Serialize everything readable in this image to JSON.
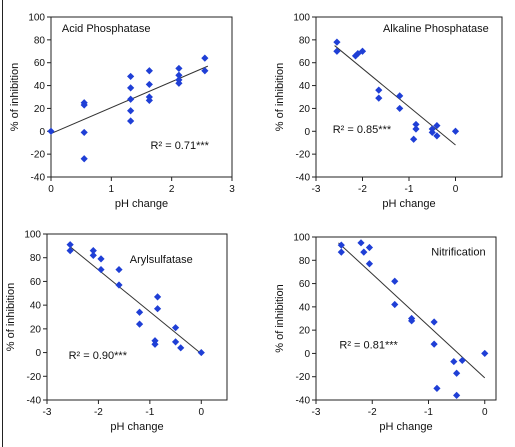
{
  "chart_data": [
    {
      "type": "scatter",
      "title": "Acid Phosphatase",
      "annotation": "R² = 0.71***",
      "xlabel": "pH change",
      "ylabel": "% of inhibition",
      "xlim": [
        0,
        3
      ],
      "ylim": [
        -40,
        100
      ],
      "xticks": [
        0,
        1,
        2,
        3
      ],
      "yticks": [
        -40,
        -20,
        0,
        20,
        40,
        60,
        80,
        100
      ],
      "grid": false,
      "points": [
        [
          0.0,
          0
        ],
        [
          0.55,
          25
        ],
        [
          0.55,
          23
        ],
        [
          0.55,
          -1
        ],
        [
          0.55,
          -24
        ],
        [
          1.32,
          48
        ],
        [
          1.32,
          38
        ],
        [
          1.32,
          28
        ],
        [
          1.32,
          18
        ],
        [
          1.32,
          9
        ],
        [
          1.63,
          53
        ],
        [
          1.63,
          41
        ],
        [
          1.63,
          30
        ],
        [
          1.63,
          27
        ],
        [
          2.12,
          55
        ],
        [
          2.12,
          49
        ],
        [
          2.12,
          45
        ],
        [
          2.12,
          42
        ],
        [
          2.55,
          64
        ],
        [
          2.55,
          53
        ]
      ],
      "trendline": {
        "x": [
          0,
          2.6
        ],
        "y": [
          -2,
          57
        ]
      }
    },
    {
      "type": "scatter",
      "title": "Alkaline Phosphatase",
      "annotation": "R² = 0.85***",
      "xlabel": "pH change",
      "ylabel": "% of inhibition",
      "xlim": [
        -3,
        1
      ],
      "ylim": [
        -40,
        100
      ],
      "xticks": [
        -3,
        -2,
        -1,
        0
      ],
      "yticks": [
        -40,
        -20,
        0,
        20,
        40,
        60,
        80,
        100
      ],
      "grid": false,
      "points": [
        [
          -2.55,
          78
        ],
        [
          -2.55,
          70
        ],
        [
          -2.15,
          66
        ],
        [
          -2.1,
          68
        ],
        [
          -2.0,
          70
        ],
        [
          -1.65,
          36
        ],
        [
          -1.65,
          29
        ],
        [
          -1.2,
          31
        ],
        [
          -1.2,
          20
        ],
        [
          -0.85,
          6
        ],
        [
          -0.85,
          2
        ],
        [
          -0.9,
          -7
        ],
        [
          -0.5,
          2
        ],
        [
          -0.5,
          -1
        ],
        [
          -0.4,
          5
        ],
        [
          -0.4,
          -4
        ],
        [
          0.0,
          0
        ]
      ],
      "trendline": {
        "x": [
          -2.6,
          0
        ],
        "y": [
          75,
          -12
        ]
      }
    },
    {
      "type": "scatter",
      "title": "Arylsulfatase",
      "annotation": "R² = 0.90***",
      "xlabel": "pH change",
      "ylabel": "% of inhibition",
      "xlim": [
        -3,
        0.5
      ],
      "ylim": [
        -40,
        100
      ],
      "xticks": [
        -3,
        -2,
        -1,
        0
      ],
      "yticks": [
        -40,
        -20,
        0,
        20,
        40,
        60,
        80,
        100
      ],
      "grid": false,
      "points": [
        [
          -2.55,
          91
        ],
        [
          -2.55,
          86
        ],
        [
          -2.1,
          86
        ],
        [
          -2.1,
          82
        ],
        [
          -1.95,
          79
        ],
        [
          -1.95,
          70
        ],
        [
          -1.6,
          70
        ],
        [
          -1.6,
          57
        ],
        [
          -1.2,
          34
        ],
        [
          -1.2,
          24
        ],
        [
          -0.85,
          47
        ],
        [
          -0.85,
          37
        ],
        [
          -0.9,
          10
        ],
        [
          -0.9,
          7
        ],
        [
          -0.5,
          21
        ],
        [
          -0.5,
          9
        ],
        [
          -0.4,
          4
        ],
        [
          0.0,
          0
        ]
      ],
      "trendline": {
        "x": [
          -2.6,
          0
        ],
        "y": [
          91,
          -1
        ]
      }
    },
    {
      "type": "scatter",
      "title": "Nitrification",
      "annotation": "R² = 0.81***",
      "xlabel": "pH change",
      "ylabel": "% of inhibition",
      "xlim": [
        -3,
        0.2
      ],
      "ylim": [
        -40,
        100
      ],
      "xticks": [
        -3,
        -2,
        -1,
        0
      ],
      "yticks": [
        -40,
        -20,
        0,
        20,
        40,
        60,
        80,
        100
      ],
      "grid": false,
      "points": [
        [
          -2.55,
          93
        ],
        [
          -2.55,
          87
        ],
        [
          -2.2,
          95
        ],
        [
          -2.15,
          87
        ],
        [
          -2.05,
          91
        ],
        [
          -2.05,
          77
        ],
        [
          -1.6,
          62
        ],
        [
          -1.6,
          42
        ],
        [
          -1.3,
          30
        ],
        [
          -1.3,
          28
        ],
        [
          -0.9,
          27
        ],
        [
          -0.9,
          8
        ],
        [
          -0.85,
          -30
        ],
        [
          -0.55,
          -7
        ],
        [
          -0.5,
          -17
        ],
        [
          -0.5,
          -36
        ],
        [
          -0.4,
          -6
        ],
        [
          0.0,
          0
        ]
      ],
      "trendline": {
        "x": [
          -2.6,
          0
        ],
        "y": [
          95,
          -21
        ]
      }
    }
  ]
}
